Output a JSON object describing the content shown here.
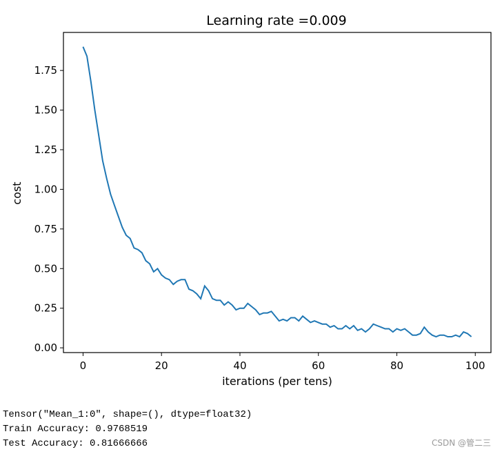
{
  "chart_data": {
    "type": "line",
    "title": "Learning rate =0.009",
    "xlabel": "iterations (per tens)",
    "ylabel": "cost",
    "xlim": [
      -5,
      104
    ],
    "ylim": [
      -0.03,
      1.99
    ],
    "xticks": [
      0,
      20,
      40,
      60,
      80,
      100
    ],
    "yticks": [
      0.0,
      0.25,
      0.5,
      0.75,
      1.0,
      1.25,
      1.5,
      1.75
    ],
    "xtick_labels": [
      "0",
      "20",
      "40",
      "60",
      "80",
      "100"
    ],
    "ytick_labels": [
      "0.00",
      "0.25",
      "0.50",
      "0.75",
      "1.00",
      "1.25",
      "1.50",
      "1.75"
    ],
    "grid": false,
    "color": "#1f77b4",
    "series": [
      {
        "x": [
          0,
          1,
          2,
          3,
          4,
          5,
          6,
          7,
          8,
          9,
          10,
          11,
          12,
          13,
          14,
          15,
          16,
          17,
          18,
          19,
          20,
          21,
          22,
          23,
          24,
          25,
          26,
          27,
          28,
          29,
          30,
          31,
          32,
          33,
          34,
          35,
          36,
          37,
          38,
          39,
          40,
          41,
          42,
          43,
          44,
          45,
          46,
          47,
          48,
          49,
          50,
          51,
          52,
          53,
          54,
          55,
          56,
          57,
          58,
          59,
          60,
          61,
          62,
          63,
          64,
          65,
          66,
          67,
          68,
          69,
          70,
          71,
          72,
          73,
          74,
          75,
          76,
          77,
          78,
          79,
          80,
          81,
          82,
          83,
          84,
          85,
          86,
          87,
          88,
          89,
          90,
          91,
          92,
          93,
          94,
          95,
          96,
          97,
          98,
          99
        ],
        "y": [
          1.9,
          1.84,
          1.68,
          1.5,
          1.34,
          1.18,
          1.07,
          0.97,
          0.9,
          0.83,
          0.76,
          0.71,
          0.69,
          0.63,
          0.62,
          0.6,
          0.55,
          0.53,
          0.48,
          0.5,
          0.46,
          0.44,
          0.43,
          0.4,
          0.42,
          0.43,
          0.43,
          0.37,
          0.36,
          0.34,
          0.31,
          0.39,
          0.36,
          0.31,
          0.3,
          0.3,
          0.27,
          0.29,
          0.27,
          0.24,
          0.25,
          0.25,
          0.28,
          0.26,
          0.24,
          0.21,
          0.22,
          0.22,
          0.23,
          0.2,
          0.17,
          0.18,
          0.17,
          0.19,
          0.19,
          0.17,
          0.2,
          0.18,
          0.16,
          0.17,
          0.16,
          0.15,
          0.15,
          0.13,
          0.14,
          0.12,
          0.12,
          0.14,
          0.12,
          0.14,
          0.11,
          0.12,
          0.1,
          0.12,
          0.15,
          0.14,
          0.13,
          0.12,
          0.12,
          0.1,
          0.12,
          0.11,
          0.12,
          0.1,
          0.08,
          0.08,
          0.09,
          0.13,
          0.1,
          0.08,
          0.07,
          0.08,
          0.08,
          0.07,
          0.07,
          0.08,
          0.07,
          0.1,
          0.09,
          0.07
        ]
      }
    ]
  },
  "console": {
    "line1": "Tensor(\"Mean_1:0\", shape=(), dtype=float32)",
    "line2": "Train Accuracy: 0.9768519",
    "line3": "Test Accuracy: 0.81666666"
  },
  "watermark": "CSDN @管二三"
}
